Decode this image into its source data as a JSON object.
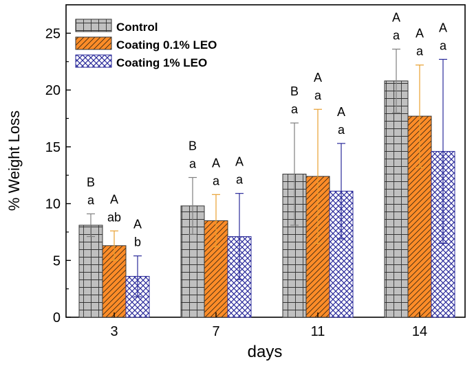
{
  "chart_data": {
    "type": "bar",
    "title": "",
    "xlabel": "days",
    "ylabel": "% Weight Loss",
    "categories": [
      "3",
      "7",
      "11",
      "14"
    ],
    "ylim": [
      0,
      27.5
    ],
    "yticks": [
      0,
      5,
      10,
      15,
      20,
      25
    ],
    "ytick_labels": [
      "0",
      "5",
      "10",
      "15",
      "20",
      "25"
    ],
    "legend_position": "top-left",
    "series": [
      {
        "name": "Control",
        "fill": "#c0c0c0",
        "pattern": "grid",
        "error_color": "#7f7f7f",
        "values": [
          8.1,
          9.8,
          12.6,
          20.8
        ],
        "errors": [
          1.0,
          2.5,
          4.5,
          2.8
        ],
        "letters_upper": [
          "B",
          "B",
          "B",
          "A"
        ],
        "letters_lower": [
          "a",
          "a",
          "a",
          "a"
        ]
      },
      {
        "name": "Coating 0.1% LEO",
        "fill": "#ff8c28",
        "pattern": "hatch",
        "error_color": "#e8a030",
        "values": [
          6.3,
          8.5,
          12.4,
          17.7
        ],
        "errors": [
          1.3,
          2.3,
          5.9,
          4.5
        ],
        "letters_upper": [
          "A",
          "A",
          "A",
          "A"
        ],
        "letters_lower": [
          "ab",
          "a",
          "a",
          "a"
        ]
      },
      {
        "name": "Coating 1% LEO",
        "fill": "#ffffff",
        "pattern": "crosshatch",
        "pattern_color": "#2a2a9a",
        "error_color": "#2a2a9a",
        "values": [
          3.6,
          7.1,
          11.1,
          14.6
        ],
        "errors": [
          1.8,
          3.8,
          4.2,
          8.1
        ],
        "letters_upper": [
          "A",
          "A",
          "A",
          "A"
        ],
        "letters_lower": [
          "b",
          "a",
          "a",
          "a"
        ]
      }
    ]
  }
}
